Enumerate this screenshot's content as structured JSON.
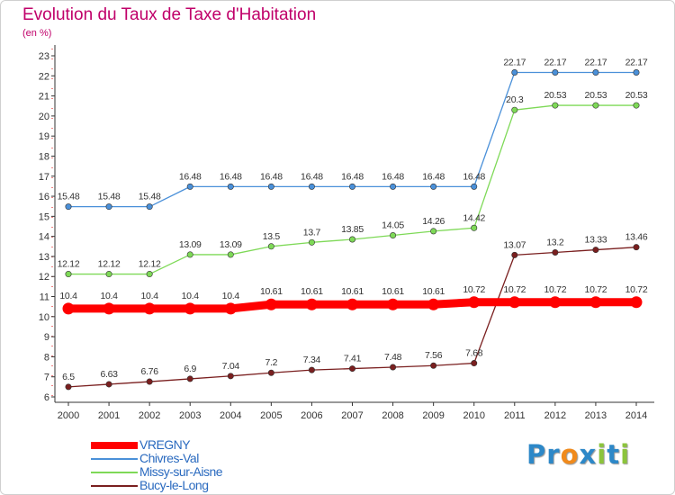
{
  "page": {
    "title": "Evolution du Taux de Taxe d'Habitation",
    "subtitle": "(en %)"
  },
  "logo": {
    "text": "Proxiti",
    "letters": [
      "P",
      "r",
      "o",
      "x",
      "i",
      "t",
      "i"
    ],
    "colors": [
      "#2d88c8",
      "#2d88c8",
      "#f08a1c",
      "#2d88c8",
      "#8cc43c",
      "#2d88c8",
      "#8cc43c"
    ]
  },
  "chart_data": {
    "type": "line",
    "title": "Evolution du Taux de Taxe d'Habitation",
    "subtitle": "(en %)",
    "x": [
      "2000",
      "2001",
      "2002",
      "2003",
      "2004",
      "2005",
      "2006",
      "2007",
      "2008",
      "2009",
      "2010",
      "2011",
      "2012",
      "2013",
      "2014"
    ],
    "ylim": [
      6,
      23
    ],
    "yticks": [
      "6",
      "7",
      "8",
      "9",
      "10",
      "11",
      "12",
      "13",
      "14",
      "15",
      "16",
      "17",
      "18",
      "19",
      "20",
      "21",
      "22",
      "23"
    ],
    "grid": false,
    "legend_position": "bottom-left",
    "series": [
      {
        "name": "VREGNY",
        "color": "#ff0000",
        "values": [
          10.4,
          10.4,
          10.4,
          10.4,
          10.4,
          10.61,
          10.61,
          10.61,
          10.61,
          10.61,
          10.72,
          10.72,
          10.72,
          10.72,
          10.72
        ],
        "labels": [
          "10.4",
          "10.4",
          "10.4",
          "10.4",
          "10.4",
          "10.61",
          "10.61",
          "10.61",
          "10.61",
          "10.61",
          "10.72",
          "10.72",
          "10.72",
          "10.72",
          "10.72"
        ]
      },
      {
        "name": "Chivres-Val",
        "color": "#4a90d9",
        "values": [
          15.48,
          15.48,
          15.48,
          16.48,
          16.48,
          16.48,
          16.48,
          16.48,
          16.48,
          16.48,
          16.48,
          22.17,
          22.17,
          22.17,
          22.17
        ],
        "labels": [
          "15.48",
          "15.48",
          "15.48",
          "16.48",
          "16.48",
          "16.48",
          "16.48",
          "16.48",
          "16.48",
          "16.48",
          "16.48",
          "22.17",
          "22.17",
          "22.17",
          "22.17"
        ]
      },
      {
        "name": "Missy-sur-Aisne",
        "color": "#7ed957",
        "values": [
          12.12,
          12.12,
          12.12,
          13.09,
          13.09,
          13.5,
          13.7,
          13.85,
          14.05,
          14.26,
          14.42,
          20.3,
          20.53,
          20.53,
          20.53
        ],
        "labels": [
          "12.12",
          "12.12",
          "12.12",
          "13.09",
          "13.09",
          "13.5",
          "13.7",
          "13.85",
          "14.05",
          "14.26",
          "14.42",
          "20.3",
          "20.53",
          "20.53",
          "20.53"
        ]
      },
      {
        "name": "Bucy-le-Long",
        "color": "#7a1f1f",
        "values": [
          6.5,
          6.63,
          6.76,
          6.9,
          7.04,
          7.2,
          7.34,
          7.41,
          7.48,
          7.56,
          7.68,
          13.07,
          13.2,
          13.33,
          13.46
        ],
        "labels": [
          "6.5",
          "6.63",
          "6.76",
          "6.9",
          "7.04",
          "7.2",
          "7.34",
          "7.41",
          "7.48",
          "7.56",
          "7.68",
          "13.07",
          "13.2",
          "13.33",
          "13.46"
        ]
      }
    ]
  }
}
